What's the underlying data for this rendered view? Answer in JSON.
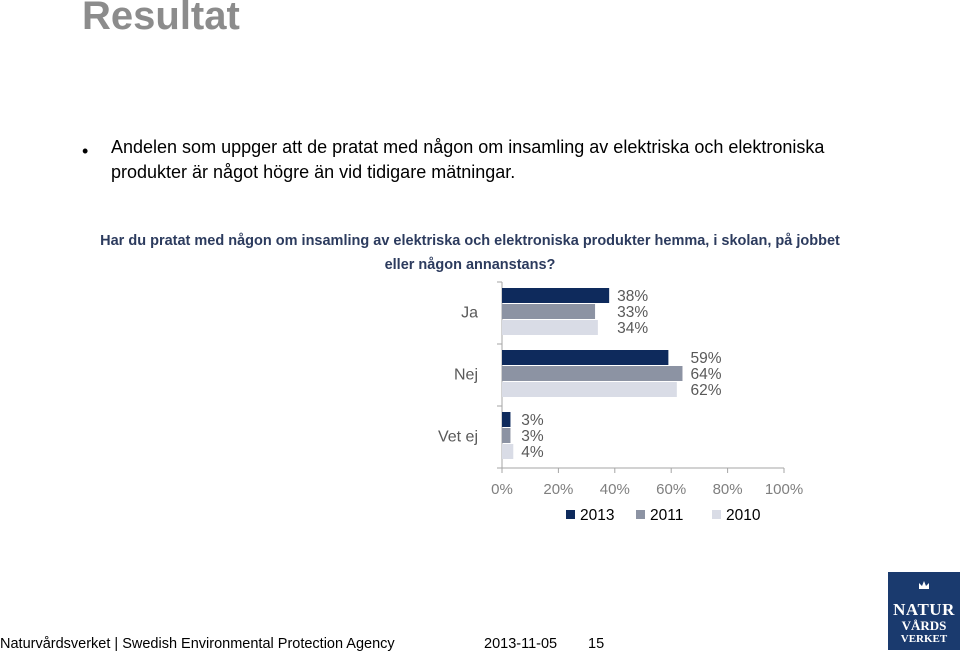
{
  "page": {
    "title": "Resultat",
    "bullet": "Andelen som uppger att de pratat med någon om insamling av elektriska och elektroniska produkter är något högre än vid tidigare mätningar."
  },
  "chart_data": {
    "type": "bar",
    "orientation": "horizontal",
    "title": "Har du pratat med någon om insamling av elektriska och elektroniska produkter hemma, i skolan, på jobbet eller någon annanstans?",
    "categories": [
      "Ja",
      "Nej",
      "Vet ej"
    ],
    "series": [
      {
        "name": "2013",
        "color": "#0e2a5c",
        "values": [
          38,
          59,
          3
        ],
        "labels": [
          "38%",
          "59%",
          "3%"
        ]
      },
      {
        "name": "2011",
        "color": "#8c93a3",
        "values": [
          33,
          64,
          3
        ],
        "labels": [
          "33%",
          "64%",
          "3%"
        ]
      },
      {
        "name": "2010",
        "color": "#d9dce6",
        "values": [
          34,
          62,
          4
        ],
        "labels": [
          "34%",
          "62%",
          "4%"
        ]
      }
    ],
    "xlim": [
      0,
      100
    ],
    "xticks": [
      0,
      20,
      40,
      60,
      80,
      100
    ],
    "xtick_labels": [
      "0%",
      "20%",
      "40%",
      "60%",
      "80%",
      "100%"
    ],
    "legend": "bottom",
    "grid": false
  },
  "footer": {
    "organization": "Naturvårdsverket | Swedish Environmental Protection Agency",
    "date": "2013-11-05",
    "page_number": "15"
  },
  "logo": {
    "line1": "NATUR",
    "line2": "VÅRDS",
    "line3": "VERKET"
  }
}
